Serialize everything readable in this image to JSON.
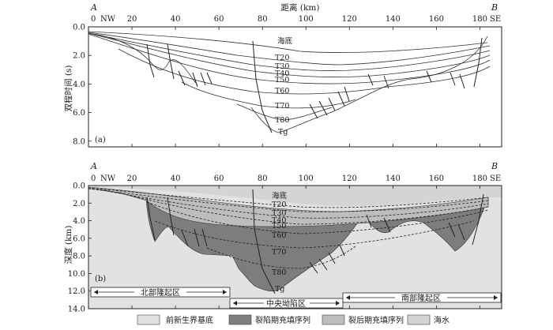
{
  "x_axis": {
    "title": "距离 (km)",
    "ticks": [
      "0",
      "20",
      "40",
      "60",
      "80",
      "100",
      "120",
      "140",
      "160",
      "180"
    ],
    "values": [
      0,
      20,
      40,
      60,
      80,
      100,
      120,
      140,
      160,
      180
    ],
    "range": [
      0,
      190
    ]
  },
  "endpoints": {
    "left_label": "A",
    "right_label": "B",
    "left_dir": "NW",
    "right_dir": "SE"
  },
  "panel_a": {
    "label": "(a)",
    "y_title": "双程时间 (s)",
    "y_ticks": [
      "0.0",
      "2.0",
      "4.0",
      "6.0",
      "8.0"
    ],
    "y_values": [
      0,
      2,
      4,
      6,
      8
    ],
    "y_range": [
      0,
      8.4
    ],
    "horizons": [
      "海底",
      "T20",
      "T30",
      "T40",
      "T50",
      "T60",
      "T70",
      "T80",
      "Tg"
    ]
  },
  "panel_b": {
    "label": "(b)",
    "y_title": "深度 (km)",
    "y_ticks": [
      "0.0",
      "2.0",
      "4.0",
      "6.0",
      "8.0",
      "10.0",
      "12.0",
      "14.0"
    ],
    "y_values": [
      0,
      2,
      4,
      6,
      8,
      10,
      12,
      14
    ],
    "y_range": [
      0,
      14
    ],
    "horizons": [
      "海底",
      "T20",
      "T30",
      "T40",
      "T50",
      "T60",
      "T70",
      "T80",
      "Tg"
    ]
  },
  "regions": [
    "北部隆起区",
    "中央坳陷区",
    "南部隆起区"
  ],
  "legend": [
    {
      "label": "前新生界基底",
      "color": "#e2e2e2"
    },
    {
      "label": "裂陷期充填序列",
      "color": "#7d7d7d"
    },
    {
      "label": "裂后期充填序列",
      "color": "#bdbdbd"
    },
    {
      "label": "海水",
      "color": "#d4d4d4"
    }
  ]
}
